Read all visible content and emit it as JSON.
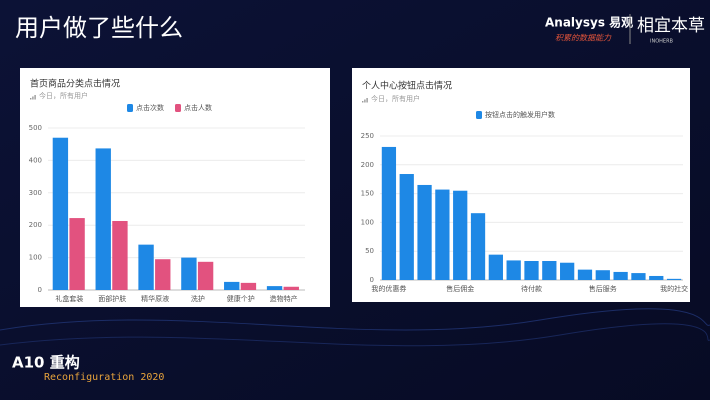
{
  "slide": {
    "title": "用户做了些什么",
    "brand": "Analysys 易观",
    "slogan": "积累的数据能力",
    "partner": "相宜本草",
    "partner_en": "INOHERB",
    "event": "A10 重构",
    "event_en": "Reconfiguration 2020"
  },
  "chart_data": [
    {
      "type": "bar",
      "title": "首页商品分类点击情况",
      "subtitle": "今日，所有用户",
      "categories": [
        "礼盒套装",
        "面部护肤",
        "精华原液",
        "洗护",
        "健康个护",
        "造物特产"
      ],
      "series": [
        {
          "name": "点击次数",
          "color": "#1e88e5",
          "values": [
            470,
            437,
            140,
            100,
            25,
            12
          ]
        },
        {
          "name": "点击人数",
          "color": "#e2527f",
          "values": [
            222,
            213,
            95,
            87,
            22,
            10
          ]
        }
      ],
      "ylim": [
        0,
        500
      ],
      "yticks": [
        0,
        100,
        200,
        300,
        400,
        500
      ],
      "grid": true
    },
    {
      "type": "bar",
      "title": "个人中心按钮点击情况",
      "subtitle": "今日，所有用户",
      "categories": [
        "我的优惠券",
        null,
        null,
        null,
        "售后佣金",
        null,
        null,
        null,
        "待付款",
        null,
        null,
        null,
        "售后服务",
        null,
        null,
        null,
        "我的社交"
      ],
      "series": [
        {
          "name": "按钮点击的触发用户数",
          "color": "#1e88e5",
          "values": [
            231,
            184,
            165,
            157,
            155,
            116,
            44,
            34,
            33,
            33,
            30,
            18,
            17,
            14,
            12,
            7,
            2
          ]
        }
      ],
      "ylim": [
        0,
        250
      ],
      "yticks": [
        0,
        50,
        100,
        150,
        200,
        250
      ],
      "grid": true
    }
  ]
}
